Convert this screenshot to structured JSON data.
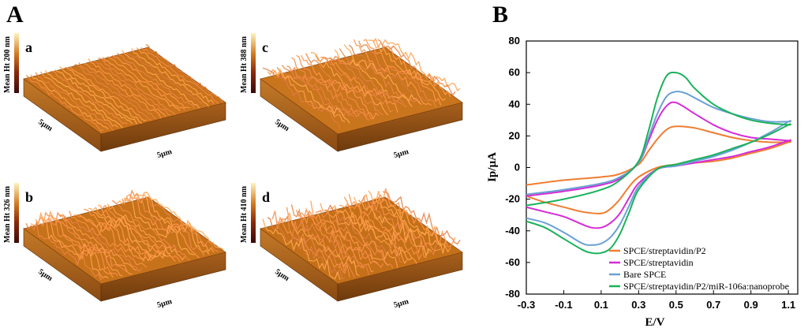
{
  "figure": {
    "panel_a_label": "A",
    "panel_b_label": "B"
  },
  "afm_images": [
    {
      "letter": "a",
      "scale_label": "Mean Ht 200 nm",
      "x_size": "5µm",
      "y_size": "5µm",
      "height_factor": 0.55,
      "roughness": "fine",
      "base_color": "#c8731c"
    },
    {
      "letter": "b",
      "scale_label": "Mean Ht 326 nm",
      "x_size": "5µm",
      "y_size": "5µm",
      "height_factor": 0.75,
      "roughness": "peaks",
      "base_color": "#c6721b"
    },
    {
      "letter": "c",
      "scale_label": "Mean Ht 388 nm",
      "x_size": "5µm",
      "y_size": "5µm",
      "height_factor": 0.85,
      "roughness": "granular",
      "base_color": "#c9751d"
    },
    {
      "letter": "d",
      "scale_label": "Mean Ht 410 nm",
      "x_size": "5µm",
      "y_size": "5µm",
      "height_factor": 0.95,
      "roughness": "spiky",
      "base_color": "#c47019"
    }
  ],
  "chart_data": {
    "type": "line",
    "title": "",
    "xlabel": "E/V",
    "ylabel": "Ip/µA",
    "xlim": [
      -0.3,
      1.15
    ],
    "ylim": [
      -80,
      80
    ],
    "xticks": [
      "-0.3",
      "-0.1",
      "0.1",
      "0.3",
      "0.5",
      "0.7",
      "0.9",
      "1.1"
    ],
    "yticks": [
      "80",
      "60",
      "40",
      "20",
      "0",
      "-20",
      "-40",
      "-60",
      "-80"
    ],
    "legend_position": "bottom-right",
    "series": [
      {
        "name": "SPCE/streptavidin/P2",
        "color": "#ef7d31",
        "anodic_x": [
          -0.3,
          -0.1,
          0.1,
          0.2,
          0.3,
          0.35,
          0.4,
          0.45,
          0.5,
          0.6,
          0.7,
          0.8,
          0.9,
          1.0,
          1.1
        ],
        "anodic_y": [
          -11,
          -8,
          -6,
          -4,
          2,
          10,
          18,
          24,
          26,
          25,
          22,
          19,
          17,
          16,
          16
        ],
        "cathodic_x": [
          1.1,
          1.0,
          0.9,
          0.8,
          0.7,
          0.6,
          0.5,
          0.4,
          0.3,
          0.25,
          0.2,
          0.15,
          0.1,
          0.0,
          -0.1,
          -0.2,
          -0.3
        ],
        "cathodic_y": [
          16,
          12,
          9,
          6,
          4,
          3,
          2,
          0,
          -6,
          -12,
          -20,
          -26,
          -29,
          -28,
          -25,
          -22,
          -18
        ]
      },
      {
        "name": "SPCE/streptavidin",
        "color": "#d62bd6",
        "anodic_x": [
          -0.3,
          -0.1,
          0.1,
          0.2,
          0.3,
          0.35,
          0.4,
          0.45,
          0.5,
          0.6,
          0.7,
          0.8,
          0.9,
          1.0,
          1.1
        ],
        "anodic_y": [
          -18,
          -15,
          -11,
          -7,
          3,
          16,
          30,
          39,
          41,
          34,
          27,
          22,
          19,
          18,
          17
        ],
        "cathodic_x": [
          1.1,
          1.0,
          0.9,
          0.8,
          0.7,
          0.6,
          0.5,
          0.4,
          0.3,
          0.25,
          0.2,
          0.15,
          0.1,
          0.05,
          0.0,
          -0.1,
          -0.2,
          -0.3
        ],
        "cathodic_y": [
          17,
          13,
          10,
          7,
          5,
          3,
          1,
          -1,
          -10,
          -19,
          -29,
          -35,
          -38,
          -38,
          -36,
          -31,
          -28,
          -25
        ]
      },
      {
        "name": "Bare SPCE",
        "color": "#6aa1d4",
        "anodic_x": [
          -0.3,
          -0.1,
          0.1,
          0.2,
          0.3,
          0.35,
          0.4,
          0.45,
          0.5,
          0.55,
          0.6,
          0.7,
          0.8,
          0.9,
          1.0,
          1.1
        ],
        "anodic_y": [
          -17,
          -14,
          -10,
          -6,
          3,
          18,
          34,
          45,
          48,
          47,
          44,
          38,
          34,
          31,
          29,
          29
        ],
        "cathodic_x": [
          1.1,
          1.0,
          0.9,
          0.8,
          0.7,
          0.6,
          0.5,
          0.4,
          0.3,
          0.25,
          0.2,
          0.15,
          0.1,
          0.05,
          0.0,
          -0.1,
          -0.2,
          -0.3
        ],
        "cathodic_y": [
          29,
          22,
          16,
          11,
          7,
          4,
          1,
          -1,
          -12,
          -24,
          -36,
          -44,
          -48,
          -49,
          -48,
          -41,
          -35,
          -32
        ]
      },
      {
        "name": "SPCE/streptavidin/P2/miR-106a:nanoprobe",
        "color": "#19b25a",
        "anodic_x": [
          -0.3,
          -0.1,
          0.1,
          0.2,
          0.3,
          0.35,
          0.4,
          0.45,
          0.5,
          0.55,
          0.6,
          0.7,
          0.8,
          0.9,
          1.0,
          1.1
        ],
        "anodic_y": [
          -24,
          -20,
          -14,
          -8,
          4,
          22,
          44,
          58,
          60,
          57,
          50,
          40,
          34,
          30,
          28,
          27
        ],
        "cathodic_x": [
          1.1,
          1.0,
          0.9,
          0.8,
          0.7,
          0.6,
          0.5,
          0.4,
          0.3,
          0.25,
          0.2,
          0.15,
          0.1,
          0.05,
          0.0,
          -0.1,
          -0.2,
          -0.3
        ],
        "cathodic_y": [
          27,
          21,
          16,
          12,
          8,
          5,
          2,
          -1,
          -14,
          -28,
          -42,
          -51,
          -54,
          -54,
          -52,
          -45,
          -38,
          -34
        ]
      }
    ]
  }
}
